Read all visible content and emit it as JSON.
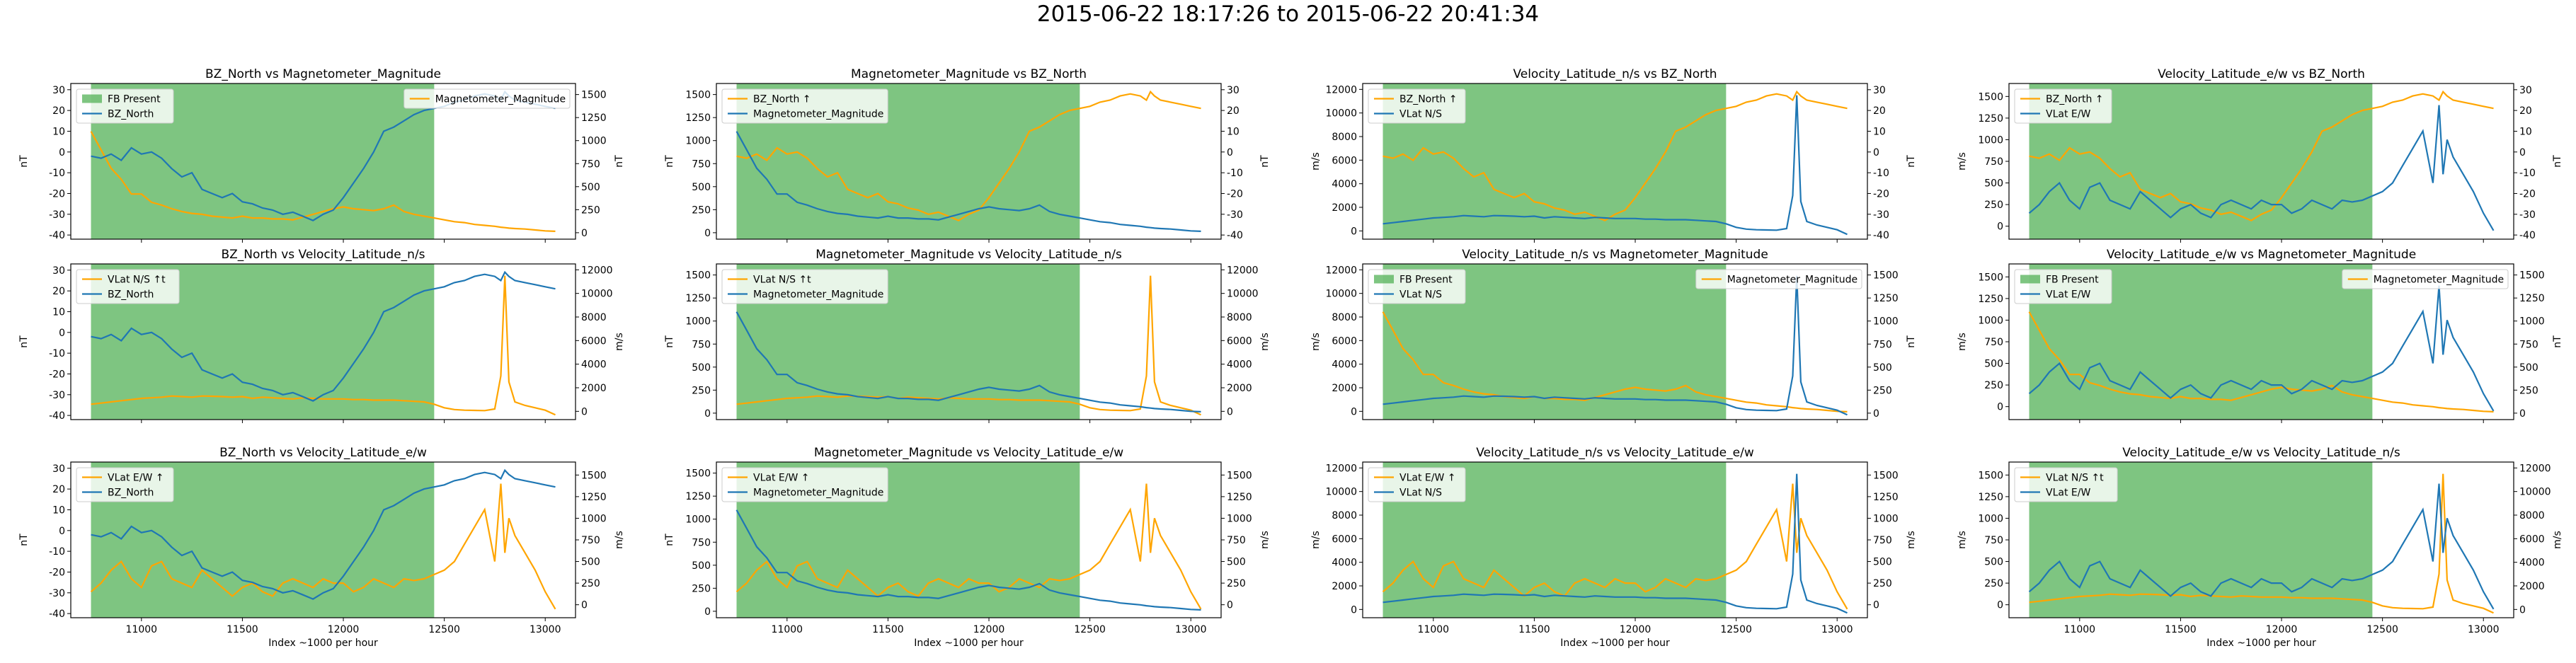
{
  "suptitle": "2015-06-22 18:17:26 to 2015-06-22 20:41:34",
  "colors": {
    "primary": "#1f77b4",
    "secondary": "#ffa500",
    "fb_present": "#4caf50"
  },
  "xlabel": "Index ~1000 per hour",
  "x_ticks": [
    11000,
    11500,
    12000,
    12500,
    13000
  ],
  "xlim": [
    10650,
    13150
  ],
  "fb_region": [
    10750,
    12450
  ],
  "chart_data": [
    {
      "type": "line",
      "row": 0,
      "col": 0,
      "title": "BZ_North vs Magnetometer_Magnitude",
      "left": {
        "name": "BZ_North",
        "ylabel": "nT",
        "ylim": [
          -42,
          33
        ],
        "ticks": [
          -40,
          -30,
          -20,
          -10,
          0,
          10,
          20,
          30
        ]
      },
      "right": {
        "name": "Magnetometer_Magnitude",
        "ylabel": "nT",
        "ylim": [
          -70,
          1620
        ],
        "ticks": [
          0,
          250,
          500,
          750,
          1000,
          1250,
          1500
        ]
      },
      "legend_left": [
        "FB Present",
        "BZ_North"
      ],
      "legend_right": [
        "Magnetometer_Magnitude"
      ]
    },
    {
      "type": "line",
      "row": 0,
      "col": 1,
      "title": "Magnetometer_Magnitude vs BZ_North",
      "left": {
        "name": "Magnetometer_Magnitude",
        "ylabel": "nT",
        "ylim": [
          -70,
          1620
        ],
        "ticks": [
          0,
          250,
          500,
          750,
          1000,
          1250,
          1500
        ]
      },
      "right": {
        "name": "BZ_North",
        "ylabel": "nT",
        "ylim": [
          -42,
          33
        ],
        "ticks": [
          -40,
          -30,
          -20,
          -10,
          0,
          10,
          20,
          30
        ]
      },
      "legend_left": [
        "BZ_North ↑",
        "Magnetometer_Magnitude"
      ],
      "legend_right": []
    },
    {
      "type": "line",
      "row": 0,
      "col": 2,
      "title": "Velocity_Latitude_n/s vs BZ_North",
      "left": {
        "name": "VLat N/S",
        "ylabel": "m/s",
        "ylim": [
          -700,
          12500
        ],
        "ticks": [
          0,
          2000,
          4000,
          6000,
          8000,
          10000,
          12000
        ]
      },
      "right": {
        "name": "BZ_North",
        "ylabel": "nT",
        "ylim": [
          -42,
          33
        ],
        "ticks": [
          -40,
          -30,
          -20,
          -10,
          0,
          10,
          20,
          30
        ]
      },
      "legend_left": [
        "BZ_North ↑",
        "VLat N/S"
      ],
      "legend_right": []
    },
    {
      "type": "line",
      "row": 0,
      "col": 3,
      "title": "Velocity_Latitude_e/w vs BZ_North",
      "left": {
        "name": "VLat E/W",
        "ylabel": "m/s",
        "ylim": [
          -150,
          1650
        ],
        "ticks": [
          0,
          250,
          500,
          750,
          1000,
          1250,
          1500
        ]
      },
      "right": {
        "name": "BZ_North",
        "ylabel": "nT",
        "ylim": [
          -42,
          33
        ],
        "ticks": [
          -40,
          -30,
          -20,
          -10,
          0,
          10,
          20,
          30
        ]
      },
      "legend_left": [
        "BZ_North ↑",
        "VLat E/W"
      ],
      "legend_right": []
    },
    {
      "type": "line",
      "row": 1,
      "col": 0,
      "title": "BZ_North vs Velocity_Latitude_n/s",
      "left": {
        "name": "BZ_North",
        "ylabel": "nT",
        "ylim": [
          -42,
          33
        ],
        "ticks": [
          -40,
          -30,
          -20,
          -10,
          0,
          10,
          20,
          30
        ]
      },
      "right": {
        "name": "VLat N/S",
        "ylabel": "m/s",
        "ylim": [
          -700,
          12500
        ],
        "ticks": [
          0,
          2000,
          4000,
          6000,
          8000,
          10000,
          12000
        ]
      },
      "legend_left": [
        "VLat N/S ↑t",
        "BZ_North"
      ],
      "legend_right": []
    },
    {
      "type": "line",
      "row": 1,
      "col": 1,
      "title": "Magnetometer_Magnitude vs Velocity_Latitude_n/s",
      "left": {
        "name": "Magnetometer_Magnitude",
        "ylabel": "nT",
        "ylim": [
          -70,
          1620
        ],
        "ticks": [
          0,
          250,
          500,
          750,
          1000,
          1250,
          1500
        ]
      },
      "right": {
        "name": "VLat N/S",
        "ylabel": "m/s",
        "ylim": [
          -700,
          12500
        ],
        "ticks": [
          0,
          2000,
          4000,
          6000,
          8000,
          10000,
          12000
        ]
      },
      "legend_left": [
        "VLat N/S ↑t",
        "Magnetometer_Magnitude"
      ],
      "legend_right": []
    },
    {
      "type": "line",
      "row": 1,
      "col": 2,
      "title": "Velocity_Latitude_n/s vs Magnetometer_Magnitude",
      "left": {
        "name": "VLat N/S",
        "ylabel": "m/s",
        "ylim": [
          -700,
          12500
        ],
        "ticks": [
          0,
          2000,
          4000,
          6000,
          8000,
          10000,
          12000
        ]
      },
      "right": {
        "name": "Magnetometer_Magnitude",
        "ylabel": "nT",
        "ylim": [
          -70,
          1620
        ],
        "ticks": [
          0,
          250,
          500,
          750,
          1000,
          1250,
          1500
        ]
      },
      "legend_left": [
        "FB Present",
        "VLat N/S"
      ],
      "legend_right": [
        "Magnetometer_Magnitude"
      ]
    },
    {
      "type": "line",
      "row": 1,
      "col": 3,
      "title": "Velocity_Latitude_e/w vs Magnetometer_Magnitude",
      "left": {
        "name": "VLat E/W",
        "ylabel": "m/s",
        "ylim": [
          -150,
          1650
        ],
        "ticks": [
          0,
          250,
          500,
          750,
          1000,
          1250,
          1500
        ]
      },
      "right": {
        "name": "Magnetometer_Magnitude",
        "ylabel": "nT",
        "ylim": [
          -70,
          1620
        ],
        "ticks": [
          0,
          250,
          500,
          750,
          1000,
          1250,
          1500
        ]
      },
      "legend_left": [
        "FB Present",
        "VLat E/W"
      ],
      "legend_right": [
        "Magnetometer_Magnitude"
      ]
    },
    {
      "type": "line",
      "row": 2,
      "col": 0,
      "title": "BZ_North vs Velocity_Latitude_e/w",
      "left": {
        "name": "BZ_North",
        "ylabel": "nT",
        "ylim": [
          -42,
          33
        ],
        "ticks": [
          -40,
          -30,
          -20,
          -10,
          0,
          10,
          20,
          30
        ]
      },
      "right": {
        "name": "VLat E/W",
        "ylabel": "m/s",
        "ylim": [
          -150,
          1650
        ],
        "ticks": [
          0,
          250,
          500,
          750,
          1000,
          1250,
          1500
        ]
      },
      "legend_left": [
        "VLat E/W ↑",
        "BZ_North"
      ],
      "legend_right": []
    },
    {
      "type": "line",
      "row": 2,
      "col": 1,
      "title": "Magnetometer_Magnitude vs Velocity_Latitude_e/w",
      "left": {
        "name": "Magnetometer_Magnitude",
        "ylabel": "nT",
        "ylim": [
          -70,
          1620
        ],
        "ticks": [
          0,
          250,
          500,
          750,
          1000,
          1250,
          1500
        ]
      },
      "right": {
        "name": "VLat E/W",
        "ylabel": "m/s",
        "ylim": [
          -150,
          1650
        ],
        "ticks": [
          0,
          250,
          500,
          750,
          1000,
          1250,
          1500
        ]
      },
      "legend_left": [
        "VLat E/W ↑",
        "Magnetometer_Magnitude"
      ],
      "legend_right": []
    },
    {
      "type": "line",
      "row": 2,
      "col": 2,
      "title": "Velocity_Latitude_n/s vs Velocity_Latitude_e/w",
      "left": {
        "name": "VLat N/S",
        "ylabel": "m/s",
        "ylim": [
          -700,
          12500
        ],
        "ticks": [
          0,
          2000,
          4000,
          6000,
          8000,
          10000,
          12000
        ]
      },
      "right": {
        "name": "VLat E/W",
        "ylabel": "m/s",
        "ylim": [
          -150,
          1650
        ],
        "ticks": [
          0,
          250,
          500,
          750,
          1000,
          1250,
          1500
        ]
      },
      "legend_left": [
        "VLat E/W ↑",
        "VLat N/S"
      ],
      "legend_right": []
    },
    {
      "type": "line",
      "row": 2,
      "col": 3,
      "title": "Velocity_Latitude_e/w vs Velocity_Latitude_n/s",
      "left": {
        "name": "VLat E/W",
        "ylabel": "m/s",
        "ylim": [
          -150,
          1650
        ],
        "ticks": [
          0,
          250,
          500,
          750,
          1000,
          1250,
          1500
        ]
      },
      "right": {
        "name": "VLat N/S",
        "ylabel": "m/s",
        "ylim": [
          -700,
          12500
        ],
        "ticks": [
          0,
          2000,
          4000,
          6000,
          8000,
          10000,
          12000
        ]
      },
      "legend_left": [
        "VLat N/S ↑t",
        "VLat E/W"
      ],
      "legend_right": []
    }
  ],
  "series_data": {
    "x": [
      10750,
      10800,
      10850,
      10900,
      10950,
      11000,
      11050,
      11100,
      11150,
      11200,
      11250,
      11300,
      11350,
      11400,
      11450,
      11500,
      11550,
      11600,
      11650,
      11700,
      11750,
      11800,
      11850,
      11900,
      11950,
      12000,
      12050,
      12100,
      12150,
      12200,
      12250,
      12300,
      12350,
      12400,
      12450,
      12500,
      12550,
      12600,
      12650,
      12700,
      12750,
      12780,
      12800,
      12820,
      12850,
      12900,
      12950,
      13000,
      13050
    ],
    "BZ_North": [
      -2,
      -3,
      -1,
      -4,
      2,
      -1,
      0,
      -3,
      -8,
      -12,
      -10,
      -18,
      -20,
      -22,
      -20,
      -24,
      -25,
      -27,
      -28,
      -30,
      -29,
      -31,
      -33,
      -30,
      -28,
      -22,
      -15,
      -8,
      0,
      10,
      12,
      15,
      18,
      20,
      21,
      22,
      24,
      25,
      27,
      28,
      27,
      25,
      29,
      27,
      25,
      24,
      23,
      22,
      21
    ],
    "Magnetometer_Magnitude": [
      1100,
      900,
      700,
      580,
      420,
      420,
      330,
      300,
      260,
      230,
      210,
      200,
      180,
      170,
      160,
      180,
      160,
      160,
      150,
      150,
      140,
      170,
      200,
      230,
      260,
      280,
      260,
      250,
      240,
      260,
      300,
      230,
      200,
      180,
      160,
      140,
      120,
      110,
      90,
      80,
      70,
      60,
      55,
      50,
      45,
      40,
      30,
      20,
      15
    ],
    "VLat_NS": [
      600,
      700,
      800,
      900,
      1000,
      1100,
      1150,
      1200,
      1300,
      1250,
      1200,
      1300,
      1280,
      1250,
      1200,
      1250,
      1100,
      1200,
      1150,
      1100,
      1050,
      1150,
      1100,
      1050,
      1050,
      1050,
      1000,
      1000,
      950,
      950,
      950,
      900,
      850,
      800,
      600,
      300,
      150,
      100,
      80,
      60,
      200,
      3000,
      11500,
      2500,
      800,
      500,
      300,
      100,
      -300
    ],
    "VLat_EW": [
      150,
      250,
      400,
      500,
      300,
      200,
      450,
      500,
      300,
      250,
      200,
      400,
      300,
      200,
      100,
      200,
      250,
      150,
      100,
      250,
      300,
      250,
      200,
      300,
      250,
      250,
      150,
      200,
      300,
      250,
      200,
      300,
      280,
      300,
      350,
      400,
      500,
      700,
      900,
      1100,
      500,
      1400,
      600,
      1000,
      800,
      600,
      400,
      150,
      -50
    ]
  }
}
